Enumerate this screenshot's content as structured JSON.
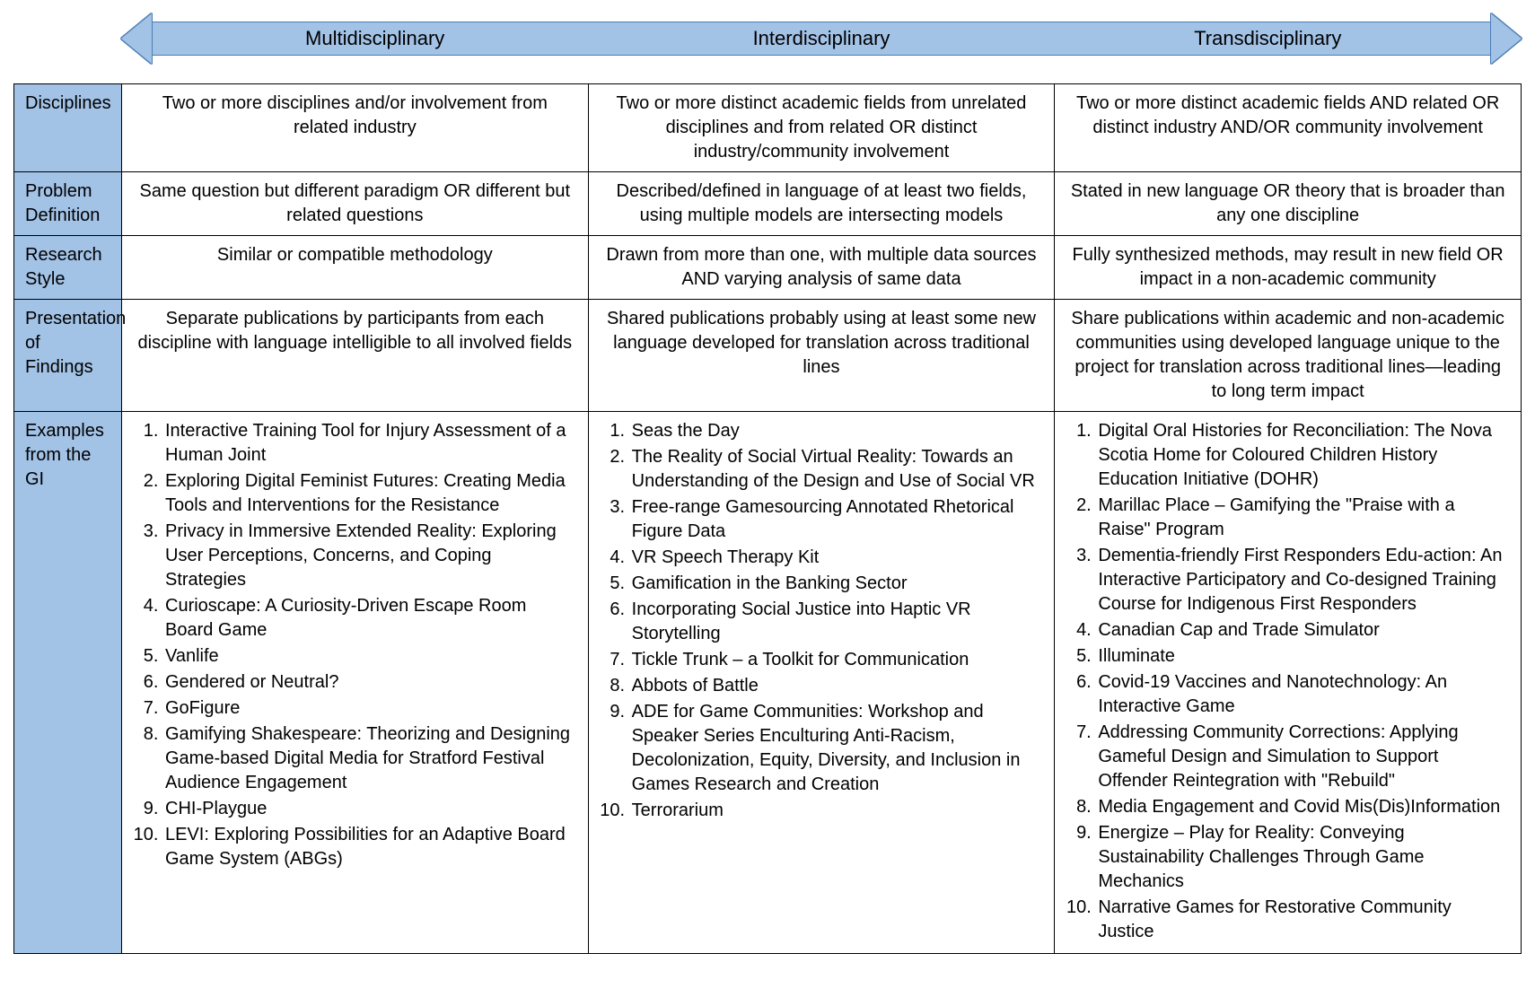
{
  "colors": {
    "header_bg": "#a2c2e6",
    "header_border": "#4a7db5",
    "table_border": "#000000",
    "text": "#000000",
    "page_bg": "#ffffff"
  },
  "typography": {
    "font_family": "Aptos, Segoe UI, sans-serif",
    "header_fontsize_pt": 16,
    "body_fontsize_pt": 15
  },
  "arrow": {
    "columns": [
      "Multidisciplinary",
      "Interdisciplinary",
      "Transdisciplinary"
    ]
  },
  "rows": [
    {
      "label": "Disciplines",
      "cells": [
        "Two or more disciplines and/or involvement from related industry",
        "Two or more distinct academic fields from unrelated disciplines and from related OR distinct industry/community involvement",
        "Two or more distinct academic fields AND related OR distinct industry AND/OR community involvement"
      ]
    },
    {
      "label": "Problem Definition",
      "cells": [
        "Same question but different paradigm OR different but related questions",
        "Described/defined in language of at least two fields, using multiple models are intersecting models",
        "Stated in new language OR theory that is broader than any one discipline"
      ]
    },
    {
      "label": "Research Style",
      "cells": [
        "Similar or compatible methodology",
        "Drawn from more than one, with multiple data sources AND varying analysis of same data",
        "Fully synthesized methods, may result in new field OR impact in a non-academic community"
      ]
    },
    {
      "label": "Presentation of Findings",
      "cells": [
        "Separate publications by participants from each discipline with language intelligible to all involved fields",
        "Shared publications probably using at least some new language developed for translation across traditional lines",
        "Share publications within academic and non-academic communities using developed language unique to the project for translation across traditional lines—leading to long term impact"
      ]
    }
  ],
  "examples": {
    "label": "Examples from the GI",
    "columns": [
      [
        "Interactive Training Tool for Injury Assessment of a Human Joint",
        "Exploring Digital Feminist Futures: Creating Media Tools and Interventions for the Resistance",
        "Privacy in Immersive Extended Reality: Exploring User Perceptions, Concerns, and Coping Strategies",
        "Curioscape: A Curiosity-Driven Escape Room Board Game",
        "Vanlife",
        "Gendered or Neutral?",
        "GoFigure",
        "Gamifying Shakespeare: Theorizing and Designing Game-based Digital Media for Stratford Festival Audience Engagement",
        "CHI-Playgue",
        "LEVI: Exploring Possibilities for an Adaptive Board Game System (ABGs)"
      ],
      [
        "Seas the Day",
        "The Reality of Social Virtual Reality: Towards an Understanding of the Design and Use of Social VR",
        "Free-range Gamesourcing Annotated Rhetorical Figure Data",
        "VR Speech Therapy Kit",
        "Gamification in the Banking Sector",
        "Incorporating Social Justice into Haptic VR Storytelling",
        "Tickle Trunk – a Toolkit for Communication",
        "Abbots of Battle",
        "ADE for Game Communities: Workshop and Speaker Series Enculturing Anti-Racism, Decolonization, Equity, Diversity, and Inclusion in Games Research and Creation",
        "Terrorarium"
      ],
      [
        "Digital Oral Histories for Reconciliation: The Nova Scotia Home for Coloured Children History Education Initiative (DOHR)",
        "Marillac Place – Gamifying the \"Praise with a Raise\" Program",
        "Dementia-friendly First Responders Edu-action: An Interactive Participatory and Co-designed Training Course for Indigenous First Responders",
        "Canadian Cap and Trade Simulator",
        "Illuminate",
        "Covid-19 Vaccines and Nanotechnology: An Interactive Game",
        "Addressing Community Corrections: Applying Gameful Design and Simulation to Support Offender Reintegration with \"Rebuild\"",
        "Media Engagement and Covid Mis(Dis)Information",
        "Energize – Play for Reality: Conveying Sustainability Challenges Through Game Mechanics",
        "Narrative Games for Restorative Community Justice"
      ]
    ]
  }
}
